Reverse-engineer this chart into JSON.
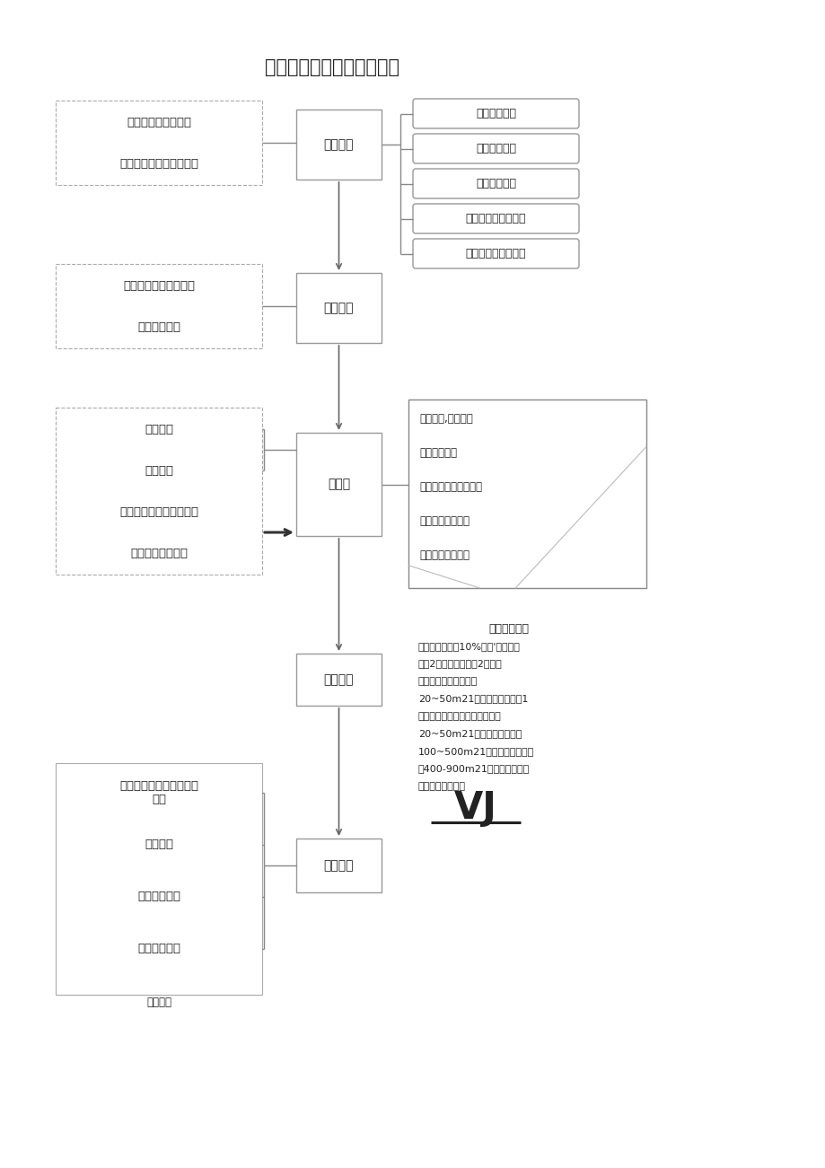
{
  "title": "土方回填工程质量控制程序",
  "bg_color": "#ffffff",
  "box_edge_color": "#999999",
  "box_face_color": "#ffffff",
  "text_color": "#222222",
  "font_size_title": 15,
  "font_size_box": 9.5,
  "font_size_note": 8.5,
  "left_boxes_section1": [
    "熟习图纸和技术资料",
    "熟习操作规程和质量标准"
  ],
  "center_box_section1": "准备工作",
  "right_boxes_section1": [
    "确定回填方案",
    "测量仪器准备",
    "回填机械准备",
    "清理现场、作好排水",
    "清除基地杂物和草皮"
  ],
  "left_boxes_section2": [
    "分部分项工程书面交底",
    "操作人员参加"
  ],
  "center_box_section2": "技术交底",
  "left_boxes_section3": [
    "中间抽查",
    "自　　检",
    "办理回填土隐蔽验收签证",
    "清理现场文明施工"
  ],
  "center_box_section3": "施　工",
  "right_note_section3": [
    "回填分层,控制庥度",
    "灰土拌合均匀",
    "清除大土快和生石灰块",
    "分层测量填土标高",
    "分层检验填土质量"
  ],
  "center_box_section4": "质量评定",
  "right_note_section4_title": "执行验评标准",
  "right_note_section4_lines": [
    "厂室内：不少于10%自然'间，但不",
    "少于2间，每间不少于2处。干",
    "密度取样数量：基坑每",
    "20~50m21组每个基坑不少于1",
    "组）；基槽或管沟，每层按长度",
    "20~50m21组室外填土每层按",
    "100~500m21组；场地平整每层",
    "按400-900m21组。取样部位在",
    "每层压实后的下半"
  ],
  "right_note_vj": "VJ",
  "left_boxes_section5": [
    "回填土券实，干密度实验\n记录",
    "自检记录",
    "质量评定记录",
    "隐蔽验收记录"
  ],
  "center_box_section5": "资料管理",
  "section5_label": "施工记录"
}
